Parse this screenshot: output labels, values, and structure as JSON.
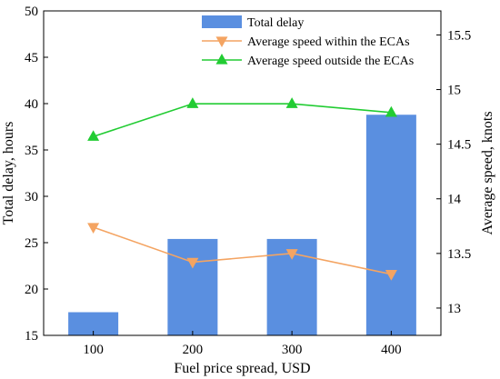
{
  "chart_data": {
    "type": "bar",
    "categories": [
      "100",
      "200",
      "300",
      "400"
    ],
    "xlabel": "Fuel price spread, USD",
    "ylabel_left": "Total delay, hours",
    "ylabel_right": "Average speed, knots",
    "ylim_left": [
      15,
      50
    ],
    "yticks_left": [
      "15",
      "20",
      "25",
      "30",
      "35",
      "40",
      "45",
      "50"
    ],
    "ylim_right": [
      12.75,
      15.72
    ],
    "yticks_right": [
      "13",
      "13.5",
      "14",
      "14.5",
      "15",
      "15.5"
    ],
    "grid": false,
    "legend_position": "top-center",
    "series": [
      {
        "name": "Total delay",
        "type": "bar",
        "axis": "left",
        "color": "#5a8fe0",
        "values": [
          17.5,
          25.4,
          25.4,
          38.8
        ]
      },
      {
        "name": "Average speed within the ECAs",
        "type": "line",
        "axis": "right",
        "marker": "triangle-down",
        "color": "#f4a462",
        "values": [
          13.74,
          13.42,
          13.5,
          13.31
        ]
      },
      {
        "name": "Average speed outside the ECAs",
        "type": "line",
        "axis": "right",
        "marker": "triangle-up",
        "color": "#22cc33",
        "values": [
          14.57,
          14.87,
          14.87,
          14.79
        ]
      }
    ]
  }
}
